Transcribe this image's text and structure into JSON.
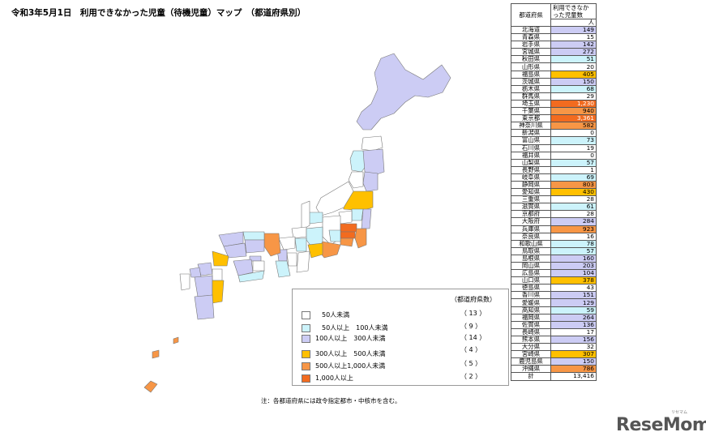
{
  "title": "令和3年5月1日　利用できなかった児童（待機児童）マップ　（都道府県別）",
  "colors": {
    "lt50": "#ffffff",
    "50to100": "#ccf3fb",
    "100to300": "#ccccf4",
    "300to500": "#ffc000",
    "500to1000": "#f79646",
    "gte1000": "#f26b1f",
    "border": "#777777"
  },
  "legend": {
    "count_header": "（都道府県数）",
    "items": [
      {
        "label": "　50人未満",
        "count": "（ 13 ）"
      },
      {
        "label": "　50人以上　100人未満",
        "count": "（ 9 ）"
      },
      {
        "label": "100人以上　300人未満",
        "count": "（ 14 ）"
      },
      {
        "label": "300人以上　500人未満",
        "count": "（ 4 ）"
      },
      {
        "label": "500人以上1,000人未満",
        "count": "（ 5 ）"
      },
      {
        "label": "1,000人以上",
        "count": "（ 2 ）"
      }
    ]
  },
  "note": "注：各都道府県には政令指定都市・中核市を含む。",
  "table": {
    "col_pref": "都道府県",
    "col_value": "利用できなかった児童数",
    "unit": "人",
    "rows": [
      {
        "pref": "北海道",
        "value": "149",
        "band": "100to300"
      },
      {
        "pref": "青森県",
        "value": "15",
        "band": "lt50"
      },
      {
        "pref": "岩手県",
        "value": "142",
        "band": "100to300"
      },
      {
        "pref": "宮城県",
        "value": "272",
        "band": "100to300"
      },
      {
        "pref": "秋田県",
        "value": "51",
        "band": "50to100"
      },
      {
        "pref": "山形県",
        "value": "20",
        "band": "lt50"
      },
      {
        "pref": "福島県",
        "value": "405",
        "band": "300to500"
      },
      {
        "pref": "茨城県",
        "value": "150",
        "band": "100to300"
      },
      {
        "pref": "栃木県",
        "value": "68",
        "band": "50to100"
      },
      {
        "pref": "群馬県",
        "value": "29",
        "band": "lt50"
      },
      {
        "pref": "埼玉県",
        "value": "1,230",
        "band": "gte1000"
      },
      {
        "pref": "千葉県",
        "value": "940",
        "band": "500to1000"
      },
      {
        "pref": "東京都",
        "value": "3,361",
        "band": "gte1000"
      },
      {
        "pref": "神奈川県",
        "value": "582",
        "band": "500to1000"
      },
      {
        "pref": "新潟県",
        "value": "0",
        "band": "lt50"
      },
      {
        "pref": "富山県",
        "value": "73",
        "band": "50to100"
      },
      {
        "pref": "石川県",
        "value": "19",
        "band": "lt50"
      },
      {
        "pref": "福井県",
        "value": "0",
        "band": "lt50"
      },
      {
        "pref": "山梨県",
        "value": "57",
        "band": "50to100"
      },
      {
        "pref": "長野県",
        "value": "1",
        "band": "lt50"
      },
      {
        "pref": "岐阜県",
        "value": "69",
        "band": "50to100"
      },
      {
        "pref": "静岡県",
        "value": "803",
        "band": "500to1000"
      },
      {
        "pref": "愛知県",
        "value": "430",
        "band": "300to500"
      },
      {
        "pref": "三重県",
        "value": "28",
        "band": "lt50"
      },
      {
        "pref": "滋賀県",
        "value": "61",
        "band": "50to100"
      },
      {
        "pref": "京都府",
        "value": "28",
        "band": "lt50"
      },
      {
        "pref": "大阪府",
        "value": "284",
        "band": "100to300"
      },
      {
        "pref": "兵庫県",
        "value": "923",
        "band": "500to1000"
      },
      {
        "pref": "奈良県",
        "value": "16",
        "band": "lt50"
      },
      {
        "pref": "和歌山県",
        "value": "78",
        "band": "50to100"
      },
      {
        "pref": "鳥取県",
        "value": "57",
        "band": "50to100"
      },
      {
        "pref": "島根県",
        "value": "160",
        "band": "100to300"
      },
      {
        "pref": "岡山県",
        "value": "203",
        "band": "100to300"
      },
      {
        "pref": "広島県",
        "value": "104",
        "band": "100to300"
      },
      {
        "pref": "山口県",
        "value": "378",
        "band": "300to500"
      },
      {
        "pref": "徳島県",
        "value": "43",
        "band": "lt50"
      },
      {
        "pref": "香川県",
        "value": "151",
        "band": "100to300"
      },
      {
        "pref": "愛媛県",
        "value": "129",
        "band": "100to300"
      },
      {
        "pref": "高知県",
        "value": "59",
        "band": "50to100"
      },
      {
        "pref": "福岡県",
        "value": "264",
        "band": "100to300"
      },
      {
        "pref": "佐賀県",
        "value": "136",
        "band": "100to300"
      },
      {
        "pref": "長崎県",
        "value": "17",
        "band": "lt50"
      },
      {
        "pref": "熊本県",
        "value": "156",
        "band": "100to300"
      },
      {
        "pref": "大分県",
        "value": "32",
        "band": "lt50"
      },
      {
        "pref": "宮崎県",
        "value": "307",
        "band": "300to500"
      },
      {
        "pref": "鹿児島県",
        "value": "150",
        "band": "100to300"
      },
      {
        "pref": "沖縄県",
        "value": "786",
        "band": "500to1000"
      }
    ],
    "total_label": "計",
    "total_value": "13,416"
  },
  "logo": {
    "text": "ReseMom",
    "kana": "リセマム"
  }
}
